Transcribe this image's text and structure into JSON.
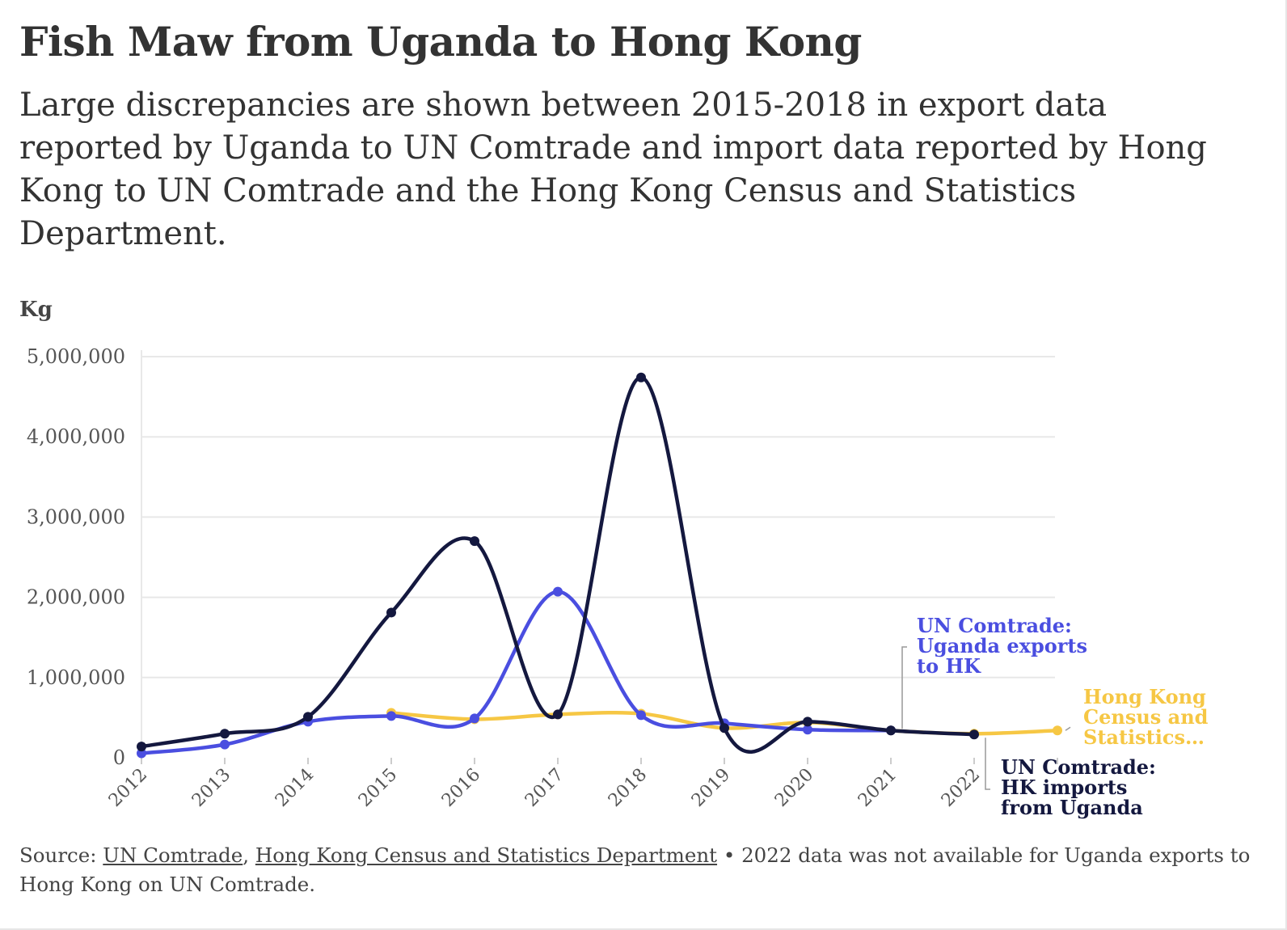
{
  "title": "Fish Maw from Uganda to Hong Kong",
  "subtitle": "Large discrepancies are shown between 2015-2018 in export data reported by Uganda to UN Comtrade and import data reported by Hong Kong to UN Comtrade and the Hong Kong Census and Statistics Department.",
  "source": {
    "prefix": "Source: ",
    "link1": "UN Comtrade",
    "sep": ", ",
    "link2": "Hong Kong Census and Statistics Department",
    "note": " • 2022 data was not available for Uganda exports to Hong Kong on UN Comtrade."
  },
  "colors": {
    "hk_imports": "#14183f",
    "uganda_exports": "#4a4ee0",
    "hk_census": "#f6c744",
    "grid": "#e8e8e8",
    "tick": "#555555"
  },
  "chart_data": {
    "type": "line",
    "ylabel": "Kg",
    "ylim": [
      0,
      5000000
    ],
    "yticks": [
      {
        "value": 0,
        "label": "0"
      },
      {
        "value": 1000000,
        "label": "1,000,000"
      },
      {
        "value": 2000000,
        "label": "2,000,000"
      },
      {
        "value": 3000000,
        "label": "3,000,000"
      },
      {
        "value": 4000000,
        "label": "4,000,000"
      },
      {
        "value": 5000000,
        "label": "5,000,000"
      }
    ],
    "x": [
      "2012",
      "2013",
      "2014",
      "2015",
      "2016",
      "2017",
      "2018",
      "2019",
      "2020",
      "2021",
      "2022",
      "2023"
    ],
    "xtick_labels": [
      "2012",
      "2013",
      "2014",
      "2015",
      "2016",
      "2017",
      "2018",
      "2019",
      "2020",
      "2021",
      "2022"
    ],
    "grid": true,
    "series": [
      {
        "key": "hk_census",
        "name": "Hong Kong Census and Statistics…",
        "labelLines": [
          "Hong Kong",
          "Census and",
          "Statistics…"
        ],
        "points": [
          [
            "2015",
            560000
          ],
          [
            "2016",
            480000
          ],
          [
            "2017",
            540000
          ],
          [
            "2018",
            550000
          ],
          [
            "2019",
            370000
          ],
          [
            "2020",
            440000
          ],
          [
            "2021",
            340000
          ],
          [
            "2022",
            300000
          ],
          [
            "2023",
            340000
          ]
        ]
      },
      {
        "key": "uganda_exports",
        "name": "UN Comtrade: Uganda exports to HK",
        "labelLines": [
          "UN Comtrade:",
          "Uganda exports",
          "to HK"
        ],
        "points": [
          [
            "2012",
            55000
          ],
          [
            "2013",
            165000
          ],
          [
            "2014",
            450000
          ],
          [
            "2015",
            520000
          ],
          [
            "2016",
            490000
          ],
          [
            "2017",
            2070000
          ],
          [
            "2018",
            530000
          ],
          [
            "2019",
            430000
          ],
          [
            "2020",
            350000
          ],
          [
            "2021",
            340000
          ]
        ]
      },
      {
        "key": "hk_imports",
        "name": "UN Comtrade: HK imports from Uganda",
        "labelLines": [
          "UN Comtrade:",
          "HK imports",
          "from Uganda"
        ],
        "points": [
          [
            "2012",
            140000
          ],
          [
            "2013",
            300000
          ],
          [
            "2014",
            510000
          ],
          [
            "2015",
            1810000
          ],
          [
            "2016",
            2700000
          ],
          [
            "2017",
            540000
          ],
          [
            "2018",
            4740000
          ],
          [
            "2019",
            370000
          ],
          [
            "2020",
            450000
          ],
          [
            "2021",
            340000
          ],
          [
            "2022",
            290000
          ]
        ]
      }
    ]
  }
}
